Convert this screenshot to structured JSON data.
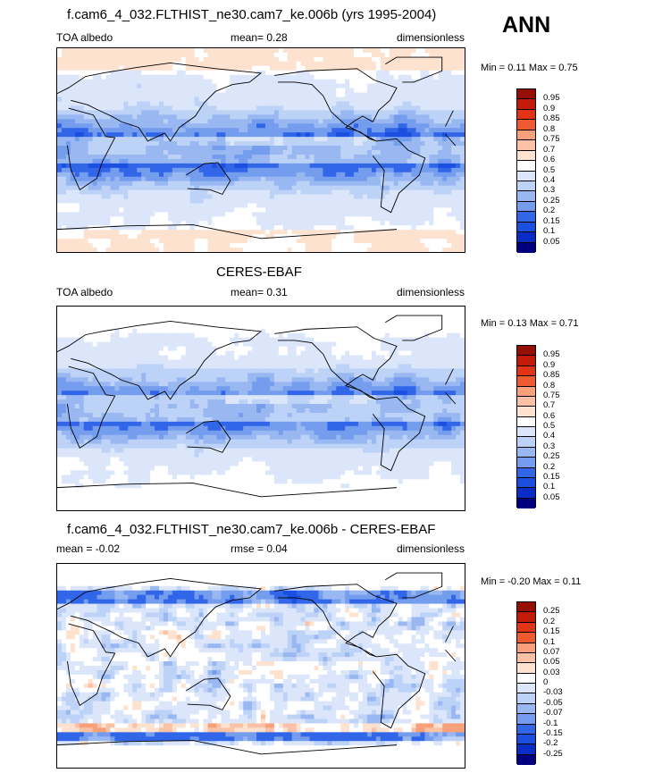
{
  "season": "ANN",
  "colors": {
    "abs": [
      "#00007f",
      "#0a2dc8",
      "#1a4fe0",
      "#3266e8",
      "#5583ec",
      "#759dee",
      "#99b8f2",
      "#bcd2f7",
      "#dce6fa",
      "#ffffff",
      "#fde2cf",
      "#fbc2a5",
      "#f8a07a",
      "#f57c55",
      "#f05a30",
      "#e23417",
      "#c41a08",
      "#960f04"
    ],
    "diff": [
      "#00007f",
      "#0a2dc8",
      "#1a4fe0",
      "#3266e8",
      "#5583ec",
      "#759dee",
      "#99b8f2",
      "#bcd2f7",
      "#dce6fa",
      "#ffffff",
      "#fde2cf",
      "#fbc2a5",
      "#f8a07a",
      "#f57c55",
      "#f05a30",
      "#e23417",
      "#c41a08",
      "#960f04"
    ],
    "land_line": "#000000"
  },
  "panels": [
    {
      "title": "f.cam6_4_032.FLTHIST_ne30.cam7_ke.006b (yrs 1995-2004)",
      "left_label": "TOA albedo",
      "center_label": "mean=   0.28",
      "right_label": "dimensionless",
      "minmax": "Min =   0.11 Max =   0.75",
      "field": "model",
      "levels": [
        "0.95",
        "0.9",
        "0.85",
        "0.8",
        "0.75",
        "0.7",
        "0.6",
        "0.5",
        "0.4",
        "0.3",
        "0.25",
        "0.2",
        "0.15",
        "0.1",
        "0.05"
      ]
    },
    {
      "title": "CERES-EBAF",
      "left_label": "TOA albedo",
      "center_label": "mean=   0.31",
      "right_label": "dimensionless",
      "minmax": "Min =   0.13 Max =   0.71",
      "field": "obs",
      "levels": [
        "0.95",
        "0.9",
        "0.85",
        "0.8",
        "0.75",
        "0.7",
        "0.6",
        "0.5",
        "0.4",
        "0.3",
        "0.25",
        "0.2",
        "0.15",
        "0.1",
        "0.05"
      ]
    },
    {
      "title": "f.cam6_4_032.FLTHIST_ne30.cam7_ke.006b - CERES-EBAF",
      "left_label": "mean =  -0.02",
      "center_label": "rmse =   0.04",
      "right_label": "dimensionless",
      "minmax": "Min =  -0.20 Max =   0.11",
      "field": "diff",
      "levels": [
        "0.25",
        "0.2",
        "0.15",
        "0.1",
        "0.07",
        "0.05",
        "0.03",
        "0",
        "-0.03",
        "-0.05",
        "-0.07",
        "-0.1",
        "-0.15",
        "-0.2",
        "-0.25"
      ]
    }
  ]
}
